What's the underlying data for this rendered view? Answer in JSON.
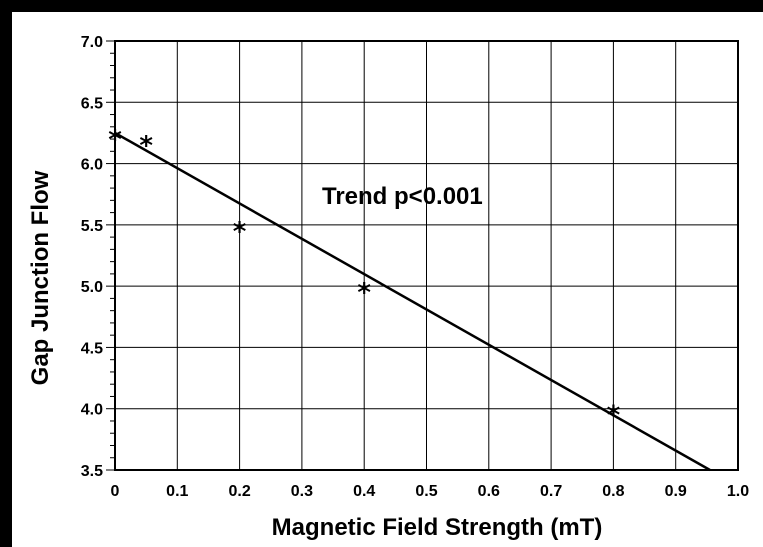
{
  "chart_data": {
    "type": "scatter",
    "title": "",
    "xlabel": "Magnetic Field  Strength (mT)",
    "ylabel": "Gap Junction  Flow",
    "xlim": [
      0,
      1.0
    ],
    "ylim": [
      3.5,
      7.0
    ],
    "x_ticks": [
      "0",
      "0.1",
      "0.2",
      "0.3",
      "0.4",
      "0.5",
      "0.6",
      "0.7",
      "0.8",
      "0.9",
      "1.0"
    ],
    "y_ticks": [
      "3.5",
      "4.0",
      "4.5",
      "5.0",
      "5.5",
      "6.0",
      "6.5",
      "7.0"
    ],
    "grid": true,
    "marker": "*",
    "points": [
      {
        "x": 0.0,
        "y": 6.25
      },
      {
        "x": 0.05,
        "y": 6.2
      },
      {
        "x": 0.2,
        "y": 5.5
      },
      {
        "x": 0.4,
        "y": 5.0
      },
      {
        "x": 0.8,
        "y": 4.0
      }
    ],
    "trend_line": {
      "x": [
        0.0,
        0.955
      ],
      "y": [
        6.25,
        3.5
      ]
    },
    "annotation": "Trend  p<0.001"
  }
}
